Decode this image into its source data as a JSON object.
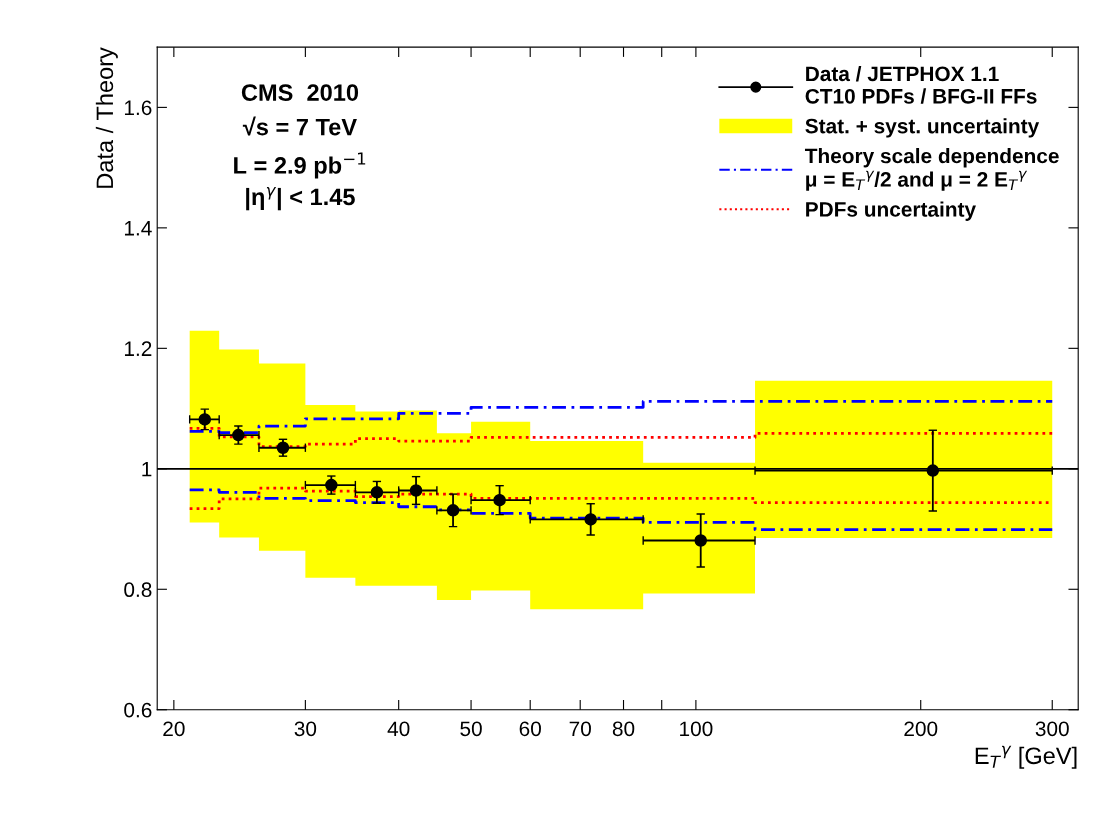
{
  "chart_data": {
    "type": "step",
    "xlabel": "E$_{T}$$^{γ}$ [GeV]",
    "ylabel": "Data / Theory",
    "log": "x",
    "xlim": [
      19,
      325
    ],
    "ylim": [
      0.6,
      1.7
    ],
    "xticks": [
      20,
      30,
      40,
      50,
      60,
      70,
      80,
      {
        "value": 90,
        "label": null
      },
      100,
      200,
      300
    ],
    "yticks": [
      0.6,
      0.8,
      1,
      1.2,
      1.4,
      1.6
    ],
    "grid": false,
    "legend": "top right",
    "annotations": [
      "CMS  2010",
      "√s = 7 TeV",
      "L = 2.9 pb$^{−1}$",
      "|η$^{γ}$| < 1.45"
    ],
    "ref_lines": [
      {
        "axis": "y",
        "value": 1,
        "color": "#000000"
      }
    ],
    "series": [
      {
        "name": "Stat. + syst. uncertainty",
        "type": "area",
        "color": "#ffff00",
        "x": [
          21,
          23,
          26,
          30,
          35,
          40,
          45,
          50,
          60,
          85,
          120,
          300
        ],
        "values": [
          null,
          null,
          null,
          null,
          null,
          null,
          null,
          null,
          null,
          null,
          null,
          null
        ],
        "lower": [
          0.911,
          0.886,
          0.864,
          0.819,
          0.806,
          0.806,
          0.782,
          0.798,
          0.767,
          0.793,
          0.885,
          0.885
        ],
        "upper": [
          1.229,
          1.198,
          1.175,
          1.106,
          1.095,
          1.097,
          1.059,
          1.078,
          1.046,
          1.01,
          1.146,
          1.146
        ]
      },
      {
        "name": "Theory scale dependence\nμ = E$_{T}$$^{γ}$/2 and μ = 2 E$_{T}$$^{γ}$",
        "color": "#0000ff",
        "line_style": "dashdot",
        "x": [
          21,
          23,
          26,
          30,
          35,
          40,
          45,
          50,
          60,
          85,
          120,
          300
        ],
        "values": [
          1.062,
          1.06,
          1.071,
          1.083,
          1.083,
          1.092,
          1.092,
          1.102,
          1.102,
          1.112,
          1.112,
          1.112
        ]
      },
      {
        "color": "#0000ff",
        "line_style": "dashdot",
        "x": [
          21,
          23,
          26,
          30,
          35,
          40,
          45,
          50,
          60,
          85,
          120,
          300
        ],
        "values": [
          0.965,
          0.961,
          0.951,
          0.947,
          0.944,
          0.937,
          0.932,
          0.926,
          0.918,
          0.911,
          0.899,
          0.899
        ]
      },
      {
        "name": "PDFs uncertainty",
        "color": "#ff0000",
        "line_style": "dotted",
        "x": [
          21,
          23,
          26,
          30,
          35,
          40,
          45,
          50,
          60,
          85,
          120,
          300
        ],
        "values": [
          1.067,
          1.053,
          1.037,
          1.041,
          1.05,
          1.046,
          1.046,
          1.052,
          1.052,
          1.052,
          1.059,
          1.059
        ]
      },
      {
        "color": "#ff0000",
        "line_style": "dotted",
        "x": [
          21,
          23,
          26,
          30,
          35,
          40,
          45,
          50,
          60,
          85,
          120,
          300
        ],
        "values": [
          0.934,
          0.95,
          0.968,
          0.963,
          0.954,
          0.958,
          0.958,
          0.951,
          0.951,
          0.951,
          0.944,
          0.944
        ]
      },
      {
        "name": "Data / JETPHOX 1.1\nCT10 PDFs / BFG-II FFs",
        "type": "scatter",
        "color": "#000000",
        "marker": "circle",
        "x": [
          22,
          24.4,
          28,
          32.5,
          37.4,
          42.2,
          47.3,
          54.6,
          72.3,
          101.5,
          207.6
        ],
        "values": [
          1.082,
          1.056,
          1.035,
          0.973,
          0.961,
          0.964,
          0.931,
          0.948,
          0.916,
          0.881,
          0.997
        ],
        "errors": [
          0.017,
          0.015,
          0.014,
          0.015,
          0.018,
          0.023,
          0.027,
          0.024,
          0.026,
          0.044,
          0.067
        ],
        "xerrors": [
          [
            21,
            23
          ],
          [
            23,
            26
          ],
          [
            26,
            30
          ],
          [
            30,
            35
          ],
          [
            35,
            40
          ],
          [
            40,
            45
          ],
          [
            45,
            50
          ],
          [
            50,
            60
          ],
          [
            60,
            85
          ],
          [
            85,
            120
          ],
          [
            120,
            300
          ]
        ]
      }
    ]
  }
}
